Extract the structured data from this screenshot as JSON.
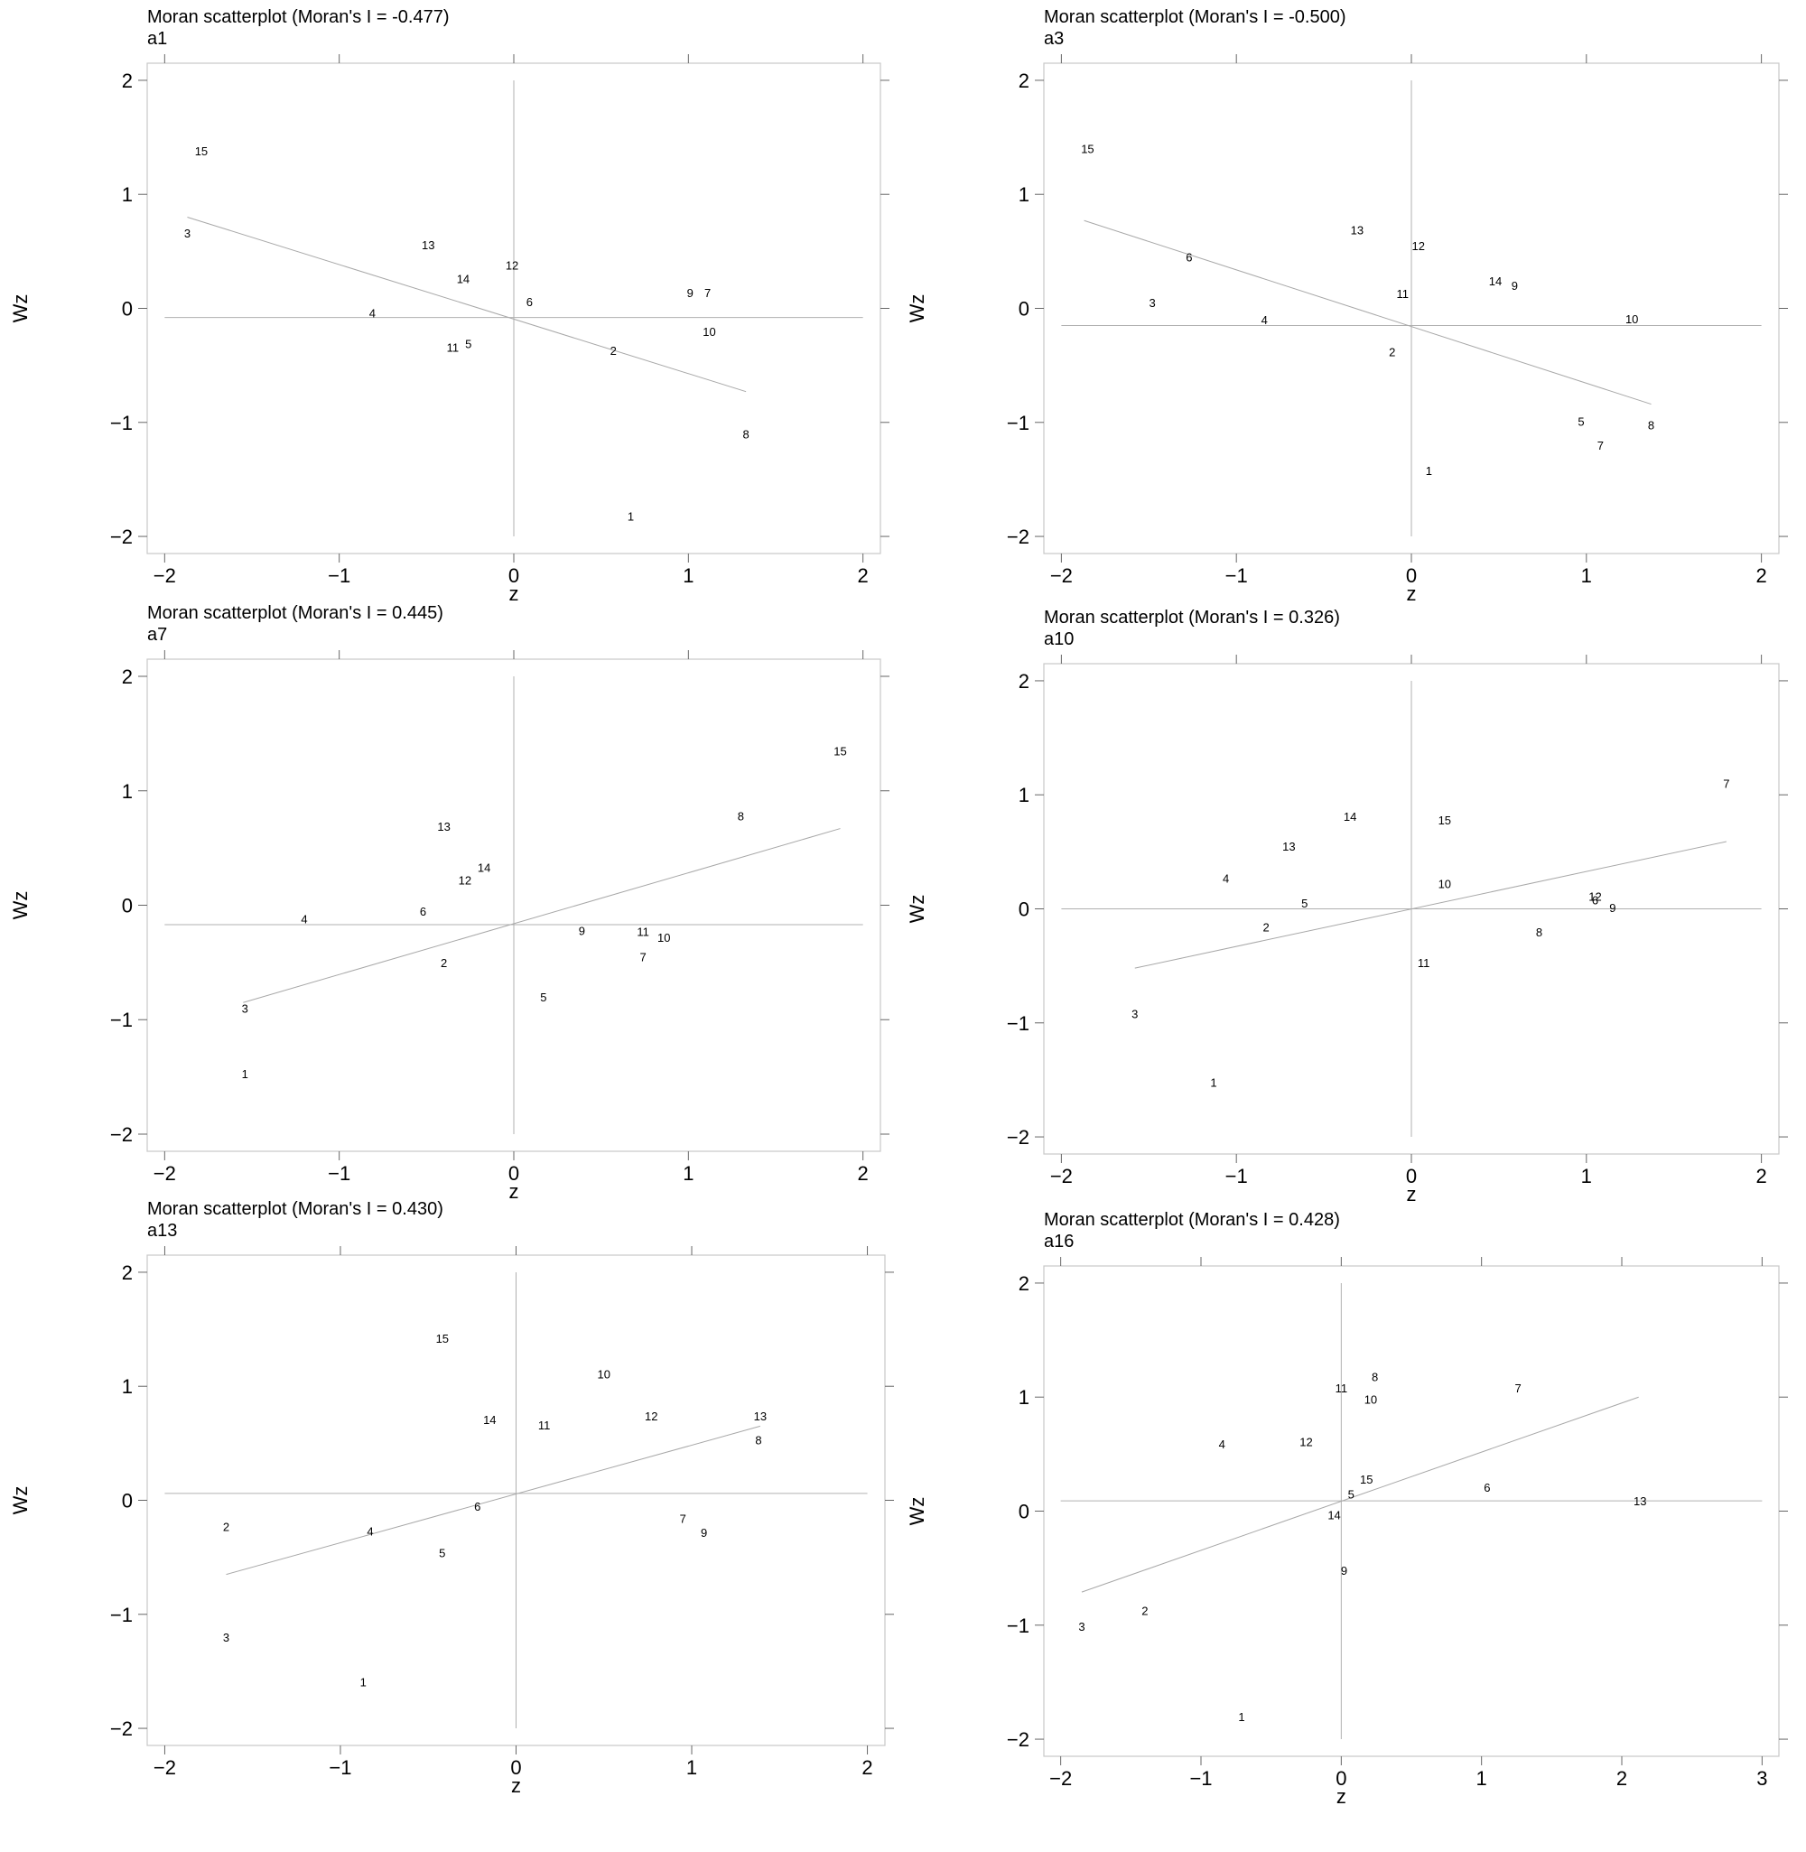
{
  "chart_data": [
    {
      "type": "scatter",
      "title": "Moran scatterplot (Moran's I = -0.477)",
      "subtitle": "a1",
      "xlabel": "z",
      "ylabel": "Wz",
      "xlim": [
        -2.1,
        2.1
      ],
      "ylim": [
        -2.15,
        2.15
      ],
      "xticks": [
        -2,
        -1,
        0,
        1,
        2
      ],
      "yticks": [
        -2,
        -1,
        0,
        1,
        2
      ],
      "mean_x": 0,
      "mean_y": -0.08,
      "fit_line": [
        [
          -1.87,
          0.8
        ],
        [
          1.33,
          -0.73
        ]
      ],
      "points": [
        {
          "label": "15",
          "x": -1.79,
          "y": 1.38
        },
        {
          "label": "3",
          "x": -1.87,
          "y": 0.66
        },
        {
          "label": "13",
          "x": -0.49,
          "y": 0.56
        },
        {
          "label": "14",
          "x": -0.29,
          "y": 0.26
        },
        {
          "label": "12",
          "x": -0.01,
          "y": 0.38
        },
        {
          "label": "6",
          "x": 0.09,
          "y": 0.06
        },
        {
          "label": "4",
          "x": -0.81,
          "y": -0.04
        },
        {
          "label": "11",
          "x": -0.35,
          "y": -0.34
        },
        {
          "label": "5",
          "x": -0.26,
          "y": -0.31
        },
        {
          "label": "2",
          "x": 0.57,
          "y": -0.37
        },
        {
          "label": "9",
          "x": 1.01,
          "y": 0.14
        },
        {
          "label": "7",
          "x": 1.11,
          "y": 0.14
        },
        {
          "label": "10",
          "x": 1.12,
          "y": -0.2
        },
        {
          "label": "8",
          "x": 1.33,
          "y": -1.1
        },
        {
          "label": "1",
          "x": 0.67,
          "y": -1.82
        }
      ]
    },
    {
      "type": "scatter",
      "title": "Moran scatterplot (Moran's I = -0.500)",
      "subtitle": "a3",
      "xlabel": "z",
      "ylabel": "Wz",
      "xlim": [
        -2.1,
        2.1
      ],
      "ylim": [
        -2.15,
        2.15
      ],
      "xticks": [
        -2,
        -1,
        0,
        1,
        2
      ],
      "yticks": [
        -2,
        -1,
        0,
        1,
        2
      ],
      "mean_x": 0,
      "mean_y": -0.15,
      "fit_line": [
        [
          -1.87,
          0.77
        ],
        [
          1.37,
          -0.84
        ]
      ],
      "points": [
        {
          "label": "15",
          "x": -1.85,
          "y": 1.4
        },
        {
          "label": "6",
          "x": -1.27,
          "y": 0.45
        },
        {
          "label": "3",
          "x": -1.48,
          "y": 0.05
        },
        {
          "label": "4",
          "x": -0.84,
          "y": -0.1
        },
        {
          "label": "13",
          "x": -0.31,
          "y": 0.69
        },
        {
          "label": "12",
          "x": 0.04,
          "y": 0.55
        },
        {
          "label": "11",
          "x": -0.05,
          "y": 0.13
        },
        {
          "label": "2",
          "x": -0.11,
          "y": -0.38
        },
        {
          "label": "14",
          "x": 0.48,
          "y": 0.24
        },
        {
          "label": "9",
          "x": 0.59,
          "y": 0.2
        },
        {
          "label": "10",
          "x": 1.26,
          "y": -0.09
        },
        {
          "label": "5",
          "x": 0.97,
          "y": -0.99
        },
        {
          "label": "8",
          "x": 1.37,
          "y": -1.02
        },
        {
          "label": "7",
          "x": 1.08,
          "y": -1.2
        },
        {
          "label": "1",
          "x": 0.1,
          "y": -1.42
        }
      ]
    },
    {
      "type": "scatter",
      "title": "Moran scatterplot (Moran's I = 0.445)",
      "subtitle": "a7",
      "xlabel": "z",
      "ylabel": "Wz",
      "xlim": [
        -2.1,
        2.1
      ],
      "ylim": [
        -2.15,
        2.15
      ],
      "xticks": [
        -2,
        -1,
        0,
        1,
        2
      ],
      "yticks": [
        -2,
        -1,
        0,
        1,
        2
      ],
      "mean_x": 0,
      "mean_y": -0.17,
      "fit_line": [
        [
          -1.55,
          -0.85
        ],
        [
          1.87,
          0.67
        ]
      ],
      "points": [
        {
          "label": "15",
          "x": 1.87,
          "y": 1.35
        },
        {
          "label": "8",
          "x": 1.3,
          "y": 0.78
        },
        {
          "label": "13",
          "x": -0.4,
          "y": 0.69
        },
        {
          "label": "14",
          "x": -0.17,
          "y": 0.33
        },
        {
          "label": "12",
          "x": -0.28,
          "y": 0.22
        },
        {
          "label": "6",
          "x": -0.52,
          "y": -0.05
        },
        {
          "label": "4",
          "x": -1.2,
          "y": -0.12
        },
        {
          "label": "9",
          "x": 0.39,
          "y": -0.22
        },
        {
          "label": "11",
          "x": 0.74,
          "y": -0.23
        },
        {
          "label": "10",
          "x": 0.86,
          "y": -0.28
        },
        {
          "label": "7",
          "x": 0.74,
          "y": -0.45
        },
        {
          "label": "2",
          "x": -0.4,
          "y": -0.5
        },
        {
          "label": "5",
          "x": 0.17,
          "y": -0.8
        },
        {
          "label": "3",
          "x": -1.54,
          "y": -0.9
        },
        {
          "label": "1",
          "x": -1.54,
          "y": -1.47
        }
      ]
    },
    {
      "type": "scatter",
      "title": "Moran scatterplot (Moran's I = 0.326)",
      "subtitle": "a10",
      "xlabel": "z",
      "ylabel": "Wz",
      "xlim": [
        -2.1,
        2.1
      ],
      "ylim": [
        -2.15,
        2.15
      ],
      "xticks": [
        -2,
        -1,
        0,
        1,
        2
      ],
      "yticks": [
        -2,
        -1,
        0,
        1,
        2
      ],
      "mean_x": 0,
      "mean_y": 0,
      "fit_line": [
        [
          -1.58,
          -0.52
        ],
        [
          1.8,
          0.59
        ]
      ],
      "points": [
        {
          "label": "7",
          "x": 1.8,
          "y": 1.1
        },
        {
          "label": "14",
          "x": -0.35,
          "y": 0.81
        },
        {
          "label": "15",
          "x": 0.19,
          "y": 0.78
        },
        {
          "label": "13",
          "x": -0.7,
          "y": 0.55
        },
        {
          "label": "4",
          "x": -1.06,
          "y": 0.27
        },
        {
          "label": "10",
          "x": 0.19,
          "y": 0.22
        },
        {
          "label": "5",
          "x": -0.61,
          "y": 0.05
        },
        {
          "label": "12",
          "x": 1.05,
          "y": 0.11
        },
        {
          "label": "6",
          "x": 1.05,
          "y": 0.08
        },
        {
          "label": "9",
          "x": 1.15,
          "y": 0.01
        },
        {
          "label": "2",
          "x": -0.83,
          "y": -0.16
        },
        {
          "label": "8",
          "x": 0.73,
          "y": -0.2
        },
        {
          "label": "11",
          "x": 0.07,
          "y": -0.47
        },
        {
          "label": "3",
          "x": -1.58,
          "y": -0.92
        },
        {
          "label": "1",
          "x": -1.13,
          "y": -1.52
        }
      ]
    },
    {
      "type": "scatter",
      "title": "Moran scatterplot (Moran's I = 0.430)",
      "subtitle": "a13",
      "xlabel": "z",
      "ylabel": "Wz",
      "xlim": [
        -2.1,
        2.1
      ],
      "ylim": [
        -2.15,
        2.15
      ],
      "xticks": [
        -2,
        -1,
        0,
        1,
        2
      ],
      "yticks": [
        -2,
        -1,
        0,
        1,
        2
      ],
      "mean_x": 0,
      "mean_y": 0.06,
      "fit_line": [
        [
          -1.65,
          -0.65
        ],
        [
          1.39,
          0.65
        ]
      ],
      "points": [
        {
          "label": "15",
          "x": -0.42,
          "y": 1.42
        },
        {
          "label": "10",
          "x": 0.5,
          "y": 1.11
        },
        {
          "label": "12",
          "x": 0.77,
          "y": 0.74
        },
        {
          "label": "13",
          "x": 1.39,
          "y": 0.74
        },
        {
          "label": "8",
          "x": 1.38,
          "y": 0.53
        },
        {
          "label": "14",
          "x": -0.15,
          "y": 0.71
        },
        {
          "label": "11",
          "x": 0.16,
          "y": 0.66
        },
        {
          "label": "6",
          "x": -0.22,
          "y": -0.05
        },
        {
          "label": "4",
          "x": -0.83,
          "y": -0.27
        },
        {
          "label": "2",
          "x": -1.65,
          "y": -0.23
        },
        {
          "label": "5",
          "x": -0.42,
          "y": -0.46
        },
        {
          "label": "7",
          "x": 0.95,
          "y": -0.16
        },
        {
          "label": "9",
          "x": 1.07,
          "y": -0.28
        },
        {
          "label": "3",
          "x": -1.65,
          "y": -1.2
        },
        {
          "label": "1",
          "x": -0.87,
          "y": -1.59
        }
      ]
    },
    {
      "type": "scatter",
      "title": "Moran scatterplot (Moran's I = 0.428)",
      "subtitle": "a16",
      "xlabel": "z",
      "ylabel": "Wz",
      "xlim": [
        -2.12,
        3.12
      ],
      "ylim": [
        -2.15,
        2.15
      ],
      "xticks": [
        -2,
        -1,
        0,
        1,
        2,
        3
      ],
      "yticks": [
        -2,
        -1,
        0,
        1,
        2
      ],
      "mean_x": 0,
      "mean_y": 0.09,
      "fit_line": [
        [
          -1.85,
          -0.71
        ],
        [
          2.12,
          1.0
        ]
      ],
      "points": [
        {
          "label": "8",
          "x": 0.24,
          "y": 1.18
        },
        {
          "label": "11",
          "x": 0.0,
          "y": 1.08
        },
        {
          "label": "10",
          "x": 0.21,
          "y": 0.98
        },
        {
          "label": "7",
          "x": 1.26,
          "y": 1.08
        },
        {
          "label": "4",
          "x": -0.85,
          "y": 0.59
        },
        {
          "label": "12",
          "x": -0.25,
          "y": 0.61
        },
        {
          "label": "15",
          "x": 0.18,
          "y": 0.28
        },
        {
          "label": "5",
          "x": 0.07,
          "y": 0.15
        },
        {
          "label": "6",
          "x": 1.04,
          "y": 0.21
        },
        {
          "label": "13",
          "x": 2.13,
          "y": 0.09
        },
        {
          "label": "14",
          "x": -0.05,
          "y": -0.03
        },
        {
          "label": "9",
          "x": 0.02,
          "y": -0.52
        },
        {
          "label": "2",
          "x": -1.4,
          "y": -0.87
        },
        {
          "label": "3",
          "x": -1.85,
          "y": -1.01
        },
        {
          "label": "1",
          "x": -0.71,
          "y": -1.8
        }
      ]
    }
  ]
}
